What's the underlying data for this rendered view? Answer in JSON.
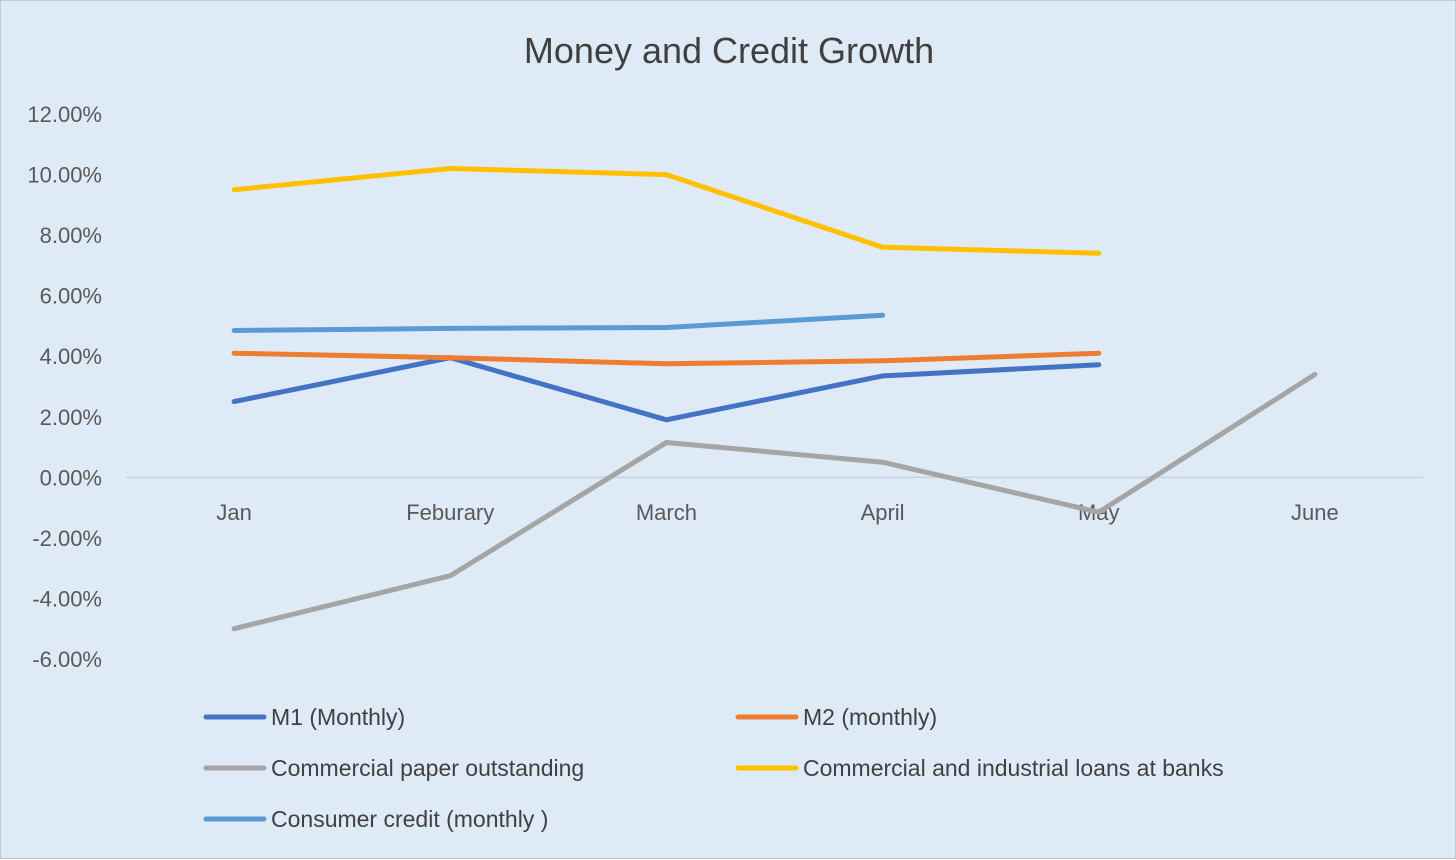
{
  "chart_data": {
    "type": "line",
    "title": "Money and Credit Growth",
    "xlabel": "",
    "ylabel": "",
    "categories": [
      "Jan",
      "Feburary",
      "March",
      "April",
      "May",
      "June"
    ],
    "ylim": [
      -6,
      12
    ],
    "y_ticks": [
      "12.00%",
      "10.00%",
      "8.00%",
      "6.00%",
      "4.00%",
      "2.00%",
      "0.00%",
      "-2.00%",
      "-4.00%",
      "-6.00%"
    ],
    "y_tick_values": [
      12,
      10,
      8,
      6,
      4,
      2,
      0,
      -2,
      -4,
      -6
    ],
    "grid": false,
    "zero_line": true,
    "legend_position": "bottom",
    "series": [
      {
        "name": "M1 (Monthly)",
        "color": "#4472c4",
        "values": [
          2.5,
          3.95,
          1.9,
          3.35,
          3.72,
          null
        ]
      },
      {
        "name": "M2 (monthly)",
        "color": "#ed7d31",
        "values": [
          4.1,
          3.95,
          3.75,
          3.85,
          4.1,
          null
        ]
      },
      {
        "name": "Commercial paper outstanding",
        "color": "#a5a5a5",
        "values": [
          -5.0,
          -3.25,
          1.15,
          0.5,
          -1.15,
          3.4
        ]
      },
      {
        "name": "Commercial and industrial loans at banks",
        "color": "#ffc000",
        "values": [
          9.5,
          10.2,
          10.0,
          7.6,
          7.4,
          null
        ]
      },
      {
        "name": "Consumer credit (monthly )",
        "color": "#5b9bd5",
        "values": [
          4.85,
          4.92,
          4.95,
          5.35,
          null,
          null
        ]
      }
    ]
  }
}
